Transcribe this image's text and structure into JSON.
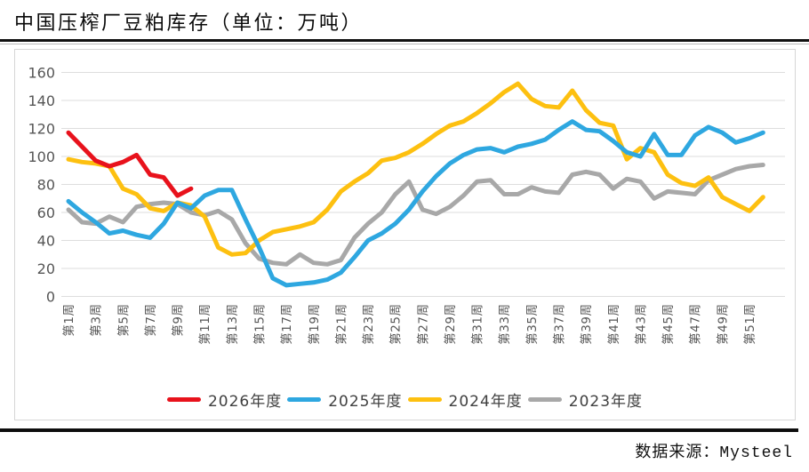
{
  "title": "中国压榨厂豆粕库存（单位：万吨）",
  "source": "数据来源：Mysteel",
  "colors": {
    "red": "#e8121c",
    "blue": "#2ea7e0",
    "yellow": "#fdc010",
    "gray": "#a8a8a8",
    "gridline": "#dedede",
    "axis_text": "#555555",
    "box_border": "#d6d6d6",
    "rule_black": "#0d0d0d"
  },
  "chart_data": {
    "type": "line",
    "title": "中国压榨厂豆粕库存（单位：万吨）",
    "xlabel": "",
    "ylabel": "",
    "ylim": [
      0,
      160
    ],
    "y_ticks": [
      0,
      20,
      40,
      60,
      80,
      100,
      120,
      140,
      160
    ],
    "grid": true,
    "legend_position": "bottom",
    "x_weeks_total": 52,
    "x_tick_labels": [
      "第1周",
      "第3周",
      "第5周",
      "第7周",
      "第9周",
      "第11周",
      "第13周",
      "第15周",
      "第17周",
      "第19周",
      "第21周",
      "第23周",
      "第25周",
      "第27周",
      "第29周",
      "第31周",
      "第33周",
      "第35周",
      "第37周",
      "第39周",
      "第41周",
      "第43周",
      "第45周",
      "第47周",
      "第49周",
      "第51周"
    ],
    "series": [
      {
        "name": "2026年度",
        "color": "#e8121c",
        "start_week": 1,
        "values": [
          117,
          107,
          97,
          93,
          96,
          101,
          87,
          85,
          72,
          77
        ]
      },
      {
        "name": "2025年度",
        "color": "#2ea7e0",
        "start_week": 1,
        "values": [
          68,
          60,
          53,
          45,
          47,
          44,
          42,
          52,
          67,
          63,
          72,
          76,
          76,
          55,
          35,
          13,
          8,
          9,
          10,
          12,
          17,
          28,
          40,
          45,
          52,
          62,
          75,
          86,
          95,
          101,
          105,
          106,
          103,
          107,
          109,
          112,
          119,
          125,
          119,
          118,
          111,
          103,
          100,
          116,
          101,
          101,
          115,
          121,
          117,
          110,
          113,
          117
        ]
      },
      {
        "name": "2024年度",
        "color": "#fdc010",
        "start_week": 1,
        "values": [
          98,
          96,
          95,
          93,
          77,
          73,
          63,
          61,
          67,
          65,
          57,
          35,
          30,
          31,
          40,
          46,
          48,
          50,
          53,
          62,
          75,
          82,
          88,
          97,
          99,
          103,
          109,
          116,
          122,
          125,
          131,
          138,
          146,
          152,
          141,
          136,
          135,
          147,
          133,
          124,
          122,
          98,
          106,
          103,
          87,
          81,
          79,
          85,
          71,
          66,
          61,
          71
        ]
      },
      {
        "name": "2023年度",
        "color": "#a8a8a8",
        "start_week": 1,
        "values": [
          62,
          53,
          52,
          57,
          53,
          64,
          66,
          67,
          66,
          60,
          58,
          61,
          55,
          38,
          27,
          24,
          23,
          30,
          24,
          23,
          26,
          42,
          52,
          60,
          73,
          82,
          62,
          59,
          64,
          72,
          82,
          83,
          73,
          73,
          78,
          75,
          74,
          87,
          89,
          87,
          77,
          84,
          82,
          70,
          75,
          74,
          73,
          83,
          87,
          91,
          93,
          94
        ]
      }
    ]
  }
}
